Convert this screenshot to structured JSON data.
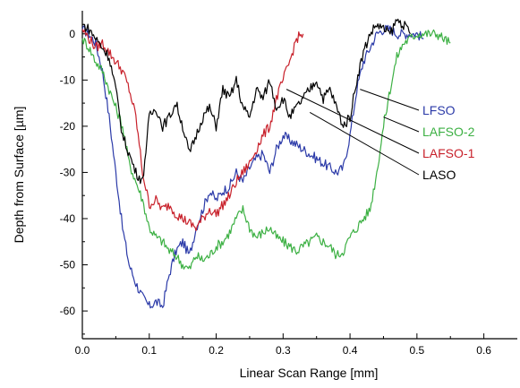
{
  "chart_data": {
    "type": "line",
    "xlabel": "Linear Scan Range [mm]",
    "ylabel": "Depth from Surface [µm]",
    "xlim": [
      0.0,
      0.65
    ],
    "ylim": [
      -66,
      5
    ],
    "x_ticks": [
      0.0,
      0.1,
      0.2,
      0.3,
      0.4,
      0.5,
      0.6
    ],
    "x_tick_labels": [
      "0.0",
      "0.1",
      "0.2",
      "0.3",
      "0.4",
      "0.5",
      "0.6"
    ],
    "y_ticks": [
      0,
      -10,
      -20,
      -30,
      -40,
      -50,
      -60
    ],
    "y_tick_labels": [
      "0",
      "-10",
      "-20",
      "-30",
      "-40",
      "-50",
      "-60"
    ],
    "grid": false,
    "legend_placement": "right",
    "series": [
      {
        "name": "LFSO",
        "color": "#2b3aa8",
        "x": [
          0.0,
          0.01,
          0.02,
          0.03,
          0.04,
          0.05,
          0.06,
          0.07,
          0.08,
          0.09,
          0.1,
          0.11,
          0.12,
          0.13,
          0.14,
          0.15,
          0.16,
          0.17,
          0.18,
          0.19,
          0.2,
          0.21,
          0.22,
          0.23,
          0.24,
          0.25,
          0.26,
          0.27,
          0.28,
          0.29,
          0.3,
          0.31,
          0.32,
          0.33,
          0.34,
          0.35,
          0.36,
          0.37,
          0.38,
          0.39,
          0.4,
          0.41,
          0.42,
          0.43,
          0.44,
          0.45,
          0.46,
          0.47,
          0.48,
          0.49,
          0.5,
          0.51
        ],
        "y": [
          1,
          0,
          -2,
          -8,
          -18,
          -30,
          -42,
          -50,
          -54,
          -57,
          -59,
          -58,
          -59,
          -52,
          -47,
          -45,
          -48,
          -42,
          -38,
          -34,
          -36,
          -34,
          -33,
          -30,
          -32,
          -29,
          -27,
          -26,
          -30,
          -25,
          -22,
          -23,
          -24,
          -25,
          -26,
          -27,
          -28,
          -29,
          -30,
          -29,
          -22,
          -12,
          -6,
          -3,
          0,
          1,
          1,
          0,
          0,
          0,
          0,
          -1
        ]
      },
      {
        "name": "LAFSO-2",
        "color": "#3cb043",
        "x": [
          0.0,
          0.01,
          0.02,
          0.03,
          0.04,
          0.05,
          0.06,
          0.07,
          0.08,
          0.09,
          0.1,
          0.11,
          0.12,
          0.13,
          0.14,
          0.15,
          0.16,
          0.17,
          0.18,
          0.19,
          0.2,
          0.21,
          0.22,
          0.23,
          0.24,
          0.25,
          0.26,
          0.27,
          0.28,
          0.29,
          0.3,
          0.31,
          0.32,
          0.33,
          0.34,
          0.35,
          0.36,
          0.37,
          0.38,
          0.39,
          0.4,
          0.41,
          0.42,
          0.43,
          0.44,
          0.45,
          0.46,
          0.47,
          0.48,
          0.49,
          0.5,
          0.51,
          0.52,
          0.53,
          0.54,
          0.55
        ],
        "y": [
          -1,
          -3,
          -6,
          -8,
          -12,
          -16,
          -20,
          -28,
          -32,
          -36,
          -42,
          -44,
          -45,
          -47,
          -48,
          -50,
          -51,
          -48,
          -49,
          -48,
          -46,
          -45,
          -43,
          -40,
          -38,
          -42,
          -44,
          -43,
          -42,
          -44,
          -45,
          -46,
          -47,
          -46,
          -45,
          -44,
          -45,
          -46,
          -48,
          -47,
          -44,
          -42,
          -40,
          -38,
          -30,
          -20,
          -12,
          -5,
          -2,
          -1,
          0,
          0,
          0,
          0,
          -1,
          -2
        ]
      },
      {
        "name": "LAFSO-1",
        "color": "#c8202a",
        "x": [
          0.0,
          0.01,
          0.02,
          0.03,
          0.04,
          0.05,
          0.06,
          0.07,
          0.08,
          0.09,
          0.1,
          0.11,
          0.12,
          0.13,
          0.14,
          0.15,
          0.16,
          0.17,
          0.18,
          0.19,
          0.2,
          0.21,
          0.22,
          0.23,
          0.24,
          0.25,
          0.26,
          0.27,
          0.28,
          0.29,
          0.3,
          0.31,
          0.32,
          0.33
        ],
        "y": [
          1,
          -1,
          -3,
          -2,
          -4,
          -6,
          -8,
          -12,
          -18,
          -30,
          -37,
          -36,
          -38,
          -37,
          -39,
          -40,
          -41,
          -42,
          -40,
          -38,
          -39,
          -37,
          -35,
          -32,
          -30,
          -28,
          -25,
          -22,
          -20,
          -14,
          -10,
          -6,
          -1,
          0
        ]
      },
      {
        "name": "LASO",
        "color": "#000000",
        "x": [
          0.0,
          0.01,
          0.02,
          0.03,
          0.04,
          0.05,
          0.06,
          0.07,
          0.08,
          0.09,
          0.1,
          0.11,
          0.12,
          0.13,
          0.14,
          0.15,
          0.16,
          0.17,
          0.18,
          0.19,
          0.2,
          0.21,
          0.22,
          0.23,
          0.24,
          0.25,
          0.26,
          0.27,
          0.28,
          0.29,
          0.3,
          0.31,
          0.32,
          0.33,
          0.34,
          0.35,
          0.36,
          0.37,
          0.38,
          0.39,
          0.4,
          0.41,
          0.42,
          0.43,
          0.44,
          0.45,
          0.46,
          0.47,
          0.48,
          0.49
        ],
        "y": [
          2,
          1,
          -1,
          -3,
          -5,
          -12,
          -22,
          -26,
          -30,
          -32,
          -18,
          -16,
          -20,
          -18,
          -15,
          -20,
          -26,
          -22,
          -18,
          -16,
          -20,
          -12,
          -14,
          -10,
          -16,
          -18,
          -12,
          -14,
          -10,
          -16,
          -14,
          -18,
          -16,
          -14,
          -12,
          -10,
          -14,
          -12,
          -16,
          -20,
          -18,
          -10,
          -4,
          0,
          2,
          1,
          0,
          3,
          2,
          0
        ]
      }
    ],
    "legend": [
      {
        "label": "LFSO",
        "color": "#2b3aa8",
        "anchor_x": 0.415,
        "anchor_y": -12
      },
      {
        "label": "LAFSO-2",
        "color": "#3cb043",
        "anchor_x": 0.45,
        "anchor_y": -18
      },
      {
        "label": "LAFSO-1",
        "color": "#c8202a",
        "anchor_x": 0.305,
        "anchor_y": -12
      },
      {
        "label": "LASO",
        "color": "#000000",
        "anchor_x": 0.34,
        "anchor_y": -17
      }
    ]
  }
}
